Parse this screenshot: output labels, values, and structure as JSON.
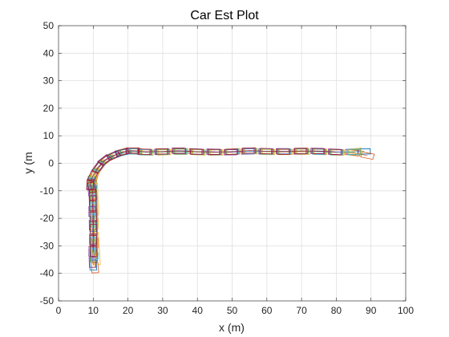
{
  "chart_data": {
    "type": "line",
    "title": "Car Est Plot",
    "xlabel": "x (m)",
    "ylabel": "y (m",
    "xlim": [
      0,
      100
    ],
    "ylim": [
      -50,
      50
    ],
    "xticks": [
      0,
      10,
      20,
      30,
      40,
      50,
      60,
      70,
      80,
      90,
      100
    ],
    "yticks": [
      -50,
      -40,
      -30,
      -20,
      -10,
      0,
      10,
      20,
      30,
      40,
      50
    ],
    "grid": true,
    "legend": "none",
    "marker_note": "each estimated car pose is drawn as a small rotated rectangle (car footprint) along the path",
    "colors": [
      "#0072BD",
      "#D95319",
      "#EDB120",
      "#7E2F8E",
      "#77AC30",
      "#4DBEEE",
      "#A2142F"
    ],
    "series": [
      {
        "color": "#0072BD",
        "x": [
          10,
          10,
          10,
          10,
          10,
          10,
          10,
          10,
          10.5,
          12,
          14,
          16.5,
          19,
          22,
          25,
          30,
          35,
          40,
          45,
          50,
          55,
          60,
          65,
          70,
          75,
          80,
          85,
          88
        ],
        "y": [
          -37,
          -33,
          -28,
          -23,
          -18,
          -14,
          -10,
          -7,
          -4,
          -1,
          1.5,
          3,
          4,
          4.3,
          4,
          4.1,
          4.3,
          4.1,
          4,
          4.2,
          4.5,
          4.2,
          4.3,
          4.4,
          4.3,
          4,
          4.2,
          4.3
        ]
      },
      {
        "color": "#D95319",
        "x": [
          10.5,
          10.3,
          10.4,
          10.2,
          10.3,
          10.1,
          10,
          9.6,
          10.2,
          11.5,
          13.5,
          16,
          18.5,
          21.5,
          25,
          30,
          35,
          40,
          45,
          50,
          55,
          60,
          65,
          70,
          75,
          80,
          85,
          89
        ],
        "y": [
          -38,
          -34,
          -29,
          -24,
          -19,
          -15,
          -11,
          -8,
          -5,
          -1.8,
          1,
          2.8,
          4.2,
          4.6,
          4.2,
          4.3,
          4.5,
          4.2,
          4.1,
          4.1,
          4.6,
          4.4,
          4.2,
          4.5,
          4.4,
          4.1,
          3.8,
          2.8
        ]
      },
      {
        "color": "#EDB120",
        "x": [
          11,
          10.8,
          10.6,
          10.5,
          10.6,
          10.4,
          10.3,
          10,
          10.6,
          12.2,
          14.3,
          16.8,
          19.3,
          22.3,
          25.5,
          30.5,
          35.5,
          40.5,
          45.5,
          50.5,
          55.5,
          60.5,
          65.5,
          70.5,
          75.5,
          80.5,
          85.5
        ],
        "y": [
          -35,
          -31,
          -27,
          -22,
          -17,
          -13,
          -9,
          -6,
          -3.5,
          -0.6,
          1.8,
          3.3,
          4.3,
          4.2,
          3.9,
          4,
          4.4,
          4,
          3.9,
          4.3,
          4.4,
          4.1,
          4.1,
          4.2,
          4.2,
          3.9,
          4.4
        ]
      },
      {
        "color": "#7E2F8E",
        "x": [
          9.8,
          9.7,
          9.9,
          9.8,
          9.7,
          9.8,
          9.5,
          9.2,
          9.9,
          11.3,
          13.2,
          15.7,
          18.2,
          21.2,
          24.5,
          29.5,
          34.5,
          39.5,
          44.5,
          49.5,
          54.5,
          59.5,
          64.5,
          69.5,
          74.5,
          79.5,
          84.5
        ],
        "y": [
          -36,
          -32,
          -27.5,
          -22.5,
          -17.5,
          -13.5,
          -10,
          -7.5,
          -4.5,
          -1.5,
          1.2,
          2.9,
          4,
          4.5,
          4.1,
          4.2,
          4.6,
          4.3,
          4.2,
          4,
          4.3,
          4.3,
          4.4,
          4.3,
          4.5,
          4.2,
          4.1
        ]
      },
      {
        "color": "#77AC30",
        "x": [
          10.2,
          10.1,
          10.2,
          10.1,
          10,
          10.1,
          9.8,
          9.4,
          10.1,
          11.7,
          13.8,
          16.3,
          18.8,
          21.8,
          25.2,
          30.2,
          35.2,
          40.2,
          45.2,
          50.2,
          55.2,
          60.2,
          65.2,
          70.2,
          75.2,
          80.2,
          85.2
        ],
        "y": [
          -34,
          -30,
          -26,
          -21,
          -16,
          -12,
          -8.5,
          -6.5,
          -4,
          -1.2,
          1.4,
          3.1,
          4.1,
          4.4,
          4,
          4.1,
          4.2,
          4.1,
          4,
          4.2,
          4.5,
          4.2,
          4.2,
          4.4,
          4.1,
          4,
          4
        ]
      },
      {
        "color": "#4DBEEE",
        "x": [
          10.4,
          10.2,
          10.1,
          10.3,
          10.2,
          10,
          9.7,
          9.3,
          10,
          11.6,
          13.6,
          16.1,
          18.6,
          21.6,
          25,
          30,
          35,
          40,
          45,
          50,
          55,
          60,
          65,
          70,
          75,
          80,
          85
        ],
        "y": [
          -33,
          -29,
          -25,
          -20.5,
          -16.5,
          -12.5,
          -9.5,
          -7,
          -4.2,
          -1.4,
          1.3,
          3,
          4.1,
          4.3,
          4,
          4.2,
          4.4,
          4.2,
          4,
          4.2,
          4.4,
          4.3,
          4.3,
          4.5,
          4.2,
          4,
          4.2
        ]
      },
      {
        "color": "#A2142F",
        "x": [
          10.1,
          10,
          10.1,
          10,
          9.9,
          9.9,
          9.6,
          9.1,
          9.8,
          11.4,
          13.4,
          15.9,
          18.4,
          21.4,
          24.8,
          29.8,
          34.8,
          39.8,
          44.8,
          49.8,
          54.8,
          59.8,
          64.8,
          69.8,
          74.8,
          79.8
        ],
        "y": [
          -32,
          -28,
          -24,
          -19.5,
          -15.5,
          -11.5,
          -8.8,
          -7.8,
          -4.8,
          -1.6,
          1.1,
          2.8,
          4,
          4.6,
          4.2,
          4.3,
          4.5,
          4.2,
          4.1,
          4.2,
          4.6,
          4.4,
          4.2,
          4.5,
          4.4,
          4.1
        ]
      }
    ]
  }
}
